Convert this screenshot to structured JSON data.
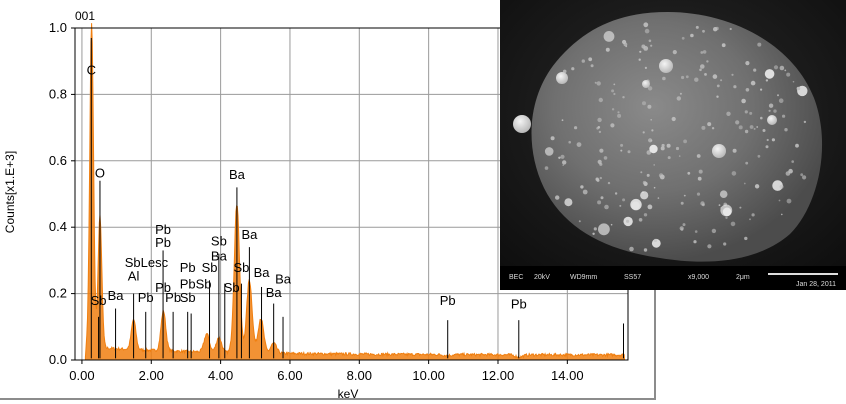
{
  "chart_data": {
    "type": "line",
    "title": "001",
    "xlabel": "keV",
    "ylabel": "Counts[x1.E+3]",
    "xlim": [
      -0.2,
      15.75
    ],
    "ylim": [
      0,
      1.0
    ],
    "x_ticks": [
      "0.00",
      "2.00",
      "4.00",
      "6.00",
      "8.00",
      "10.00",
      "12.00",
      "14.00"
    ],
    "y_ticks": [
      "0.0",
      "0.2",
      "0.4",
      "0.6",
      "0.8",
      "1.0"
    ],
    "grid": true,
    "line_color": "#f07f10",
    "spectrum_peaks": [
      {
        "x": 0.28,
        "y": 0.99
      },
      {
        "x": 0.52,
        "y": 0.41
      },
      {
        "x": 1.49,
        "y": 0.105
      },
      {
        "x": 2.35,
        "y": 0.135
      },
      {
        "x": 3.6,
        "y": 0.07
      },
      {
        "x": 3.95,
        "y": 0.06
      },
      {
        "x": 4.47,
        "y": 0.465
      },
      {
        "x": 4.83,
        "y": 0.235
      },
      {
        "x": 5.16,
        "y": 0.12
      },
      {
        "x": 5.53,
        "y": 0.045
      },
      {
        "x": 10.55,
        "y": 0.012
      },
      {
        "x": 12.61,
        "y": 0.008
      }
    ],
    "noise_floor": 0.015,
    "annotations": [
      {
        "text": "C",
        "x": 0.27,
        "y": 0.86
      },
      {
        "text": "O",
        "x": 0.52,
        "y": 0.55
      },
      {
        "text": "Sb",
        "x": 0.48,
        "y": 0.165
      },
      {
        "text": "Ba",
        "x": 0.97,
        "y": 0.18
      },
      {
        "text": "Al",
        "x": 1.49,
        "y": 0.24
      },
      {
        "text": "SbLesc",
        "x": 1.86,
        "y": 0.28
      },
      {
        "text": "Pb",
        "x": 1.84,
        "y": 0.175
      },
      {
        "text": "Pb",
        "x": 2.34,
        "y": 0.34
      },
      {
        "text": "Pb",
        "x": 2.34,
        "y": 0.38
      },
      {
        "text": "Pb",
        "x": 2.34,
        "y": 0.205
      },
      {
        "text": "Pb",
        "x": 2.63,
        "y": 0.175
      },
      {
        "text": "Sb",
        "x": 3.05,
        "y": 0.175
      },
      {
        "text": "Pb",
        "x": 3.05,
        "y": 0.265
      },
      {
        "text": "PbSb",
        "x": 3.28,
        "y": 0.215
      },
      {
        "text": "Sb",
        "x": 3.68,
        "y": 0.265
      },
      {
        "text": "Ba",
        "x": 3.95,
        "y": 0.3
      },
      {
        "text": "Sb",
        "x": 3.95,
        "y": 0.345
      },
      {
        "text": "Sb",
        "x": 4.32,
        "y": 0.205
      },
      {
        "text": "Sb",
        "x": 4.6,
        "y": 0.265
      },
      {
        "text": "Ba",
        "x": 4.47,
        "y": 0.545
      },
      {
        "text": "Ba",
        "x": 4.83,
        "y": 0.365
      },
      {
        "text": "Ba",
        "x": 5.18,
        "y": 0.25
      },
      {
        "text": "Ba",
        "x": 5.53,
        "y": 0.19
      },
      {
        "text": "Ba",
        "x": 5.8,
        "y": 0.23
      },
      {
        "text": "Pb",
        "x": 10.55,
        "y": 0.165
      },
      {
        "text": "Pb",
        "x": 12.6,
        "y": 0.155
      }
    ],
    "marker_lines": [
      {
        "x": 0.27,
        "ytop": 0.97
      },
      {
        "x": 0.52,
        "ytop": 0.54
      },
      {
        "x": 0.48,
        "ytop": 0.13
      },
      {
        "x": 0.97,
        "ytop": 0.155
      },
      {
        "x": 1.49,
        "ytop": 0.2
      },
      {
        "x": 1.84,
        "ytop": 0.145
      },
      {
        "x": 2.34,
        "ytop": 0.33
      },
      {
        "x": 2.63,
        "ytop": 0.145
      },
      {
        "x": 3.05,
        "ytop": 0.145
      },
      {
        "x": 3.15,
        "ytop": 0.14
      },
      {
        "x": 3.68,
        "ytop": 0.24
      },
      {
        "x": 3.95,
        "ytop": 0.32
      },
      {
        "x": 4.12,
        "ytop": 0.23
      },
      {
        "x": 4.47,
        "ytop": 0.52
      },
      {
        "x": 4.6,
        "ytop": 0.23
      },
      {
        "x": 4.83,
        "ytop": 0.34
      },
      {
        "x": 5.18,
        "ytop": 0.22
      },
      {
        "x": 5.53,
        "ytop": 0.17
      },
      {
        "x": 5.8,
        "ytop": 0.13
      },
      {
        "x": 10.55,
        "ytop": 0.12
      },
      {
        "x": 12.6,
        "ytop": 0.12
      },
      {
        "x": 15.62,
        "ytop": 0.11
      }
    ]
  },
  "sem_image": {
    "footer_labels": [
      "BEC",
      "20kV",
      "WD9mm",
      "SS57",
      "x9,000",
      "2μm"
    ],
    "date": "Jan 28, 2011"
  }
}
